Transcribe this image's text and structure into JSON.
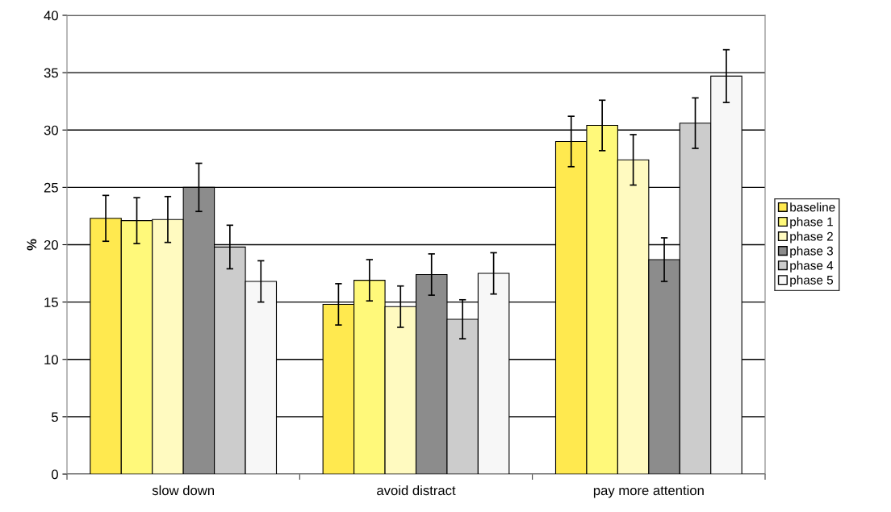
{
  "chart_data": {
    "type": "bar",
    "ylabel": "%",
    "categories": [
      "slow down",
      "avoid distract",
      "pay more attention"
    ],
    "series": [
      {
        "name": "baseline",
        "color": "#ffe94f",
        "values": [
          22.3,
          14.8,
          29.0
        ],
        "errors": [
          2.0,
          1.8,
          2.2
        ]
      },
      {
        "name": "phase 1",
        "color": "#fff97a",
        "values": [
          22.1,
          16.9,
          30.4
        ],
        "errors": [
          2.0,
          1.8,
          2.2
        ]
      },
      {
        "name": "phase 2",
        "color": "#fffac0",
        "values": [
          22.2,
          14.6,
          27.4
        ],
        "errors": [
          2.0,
          1.8,
          2.2
        ]
      },
      {
        "name": "phase 3",
        "color": "#8c8c8c",
        "values": [
          25.0,
          17.4,
          18.7
        ],
        "errors": [
          2.1,
          1.8,
          1.9
        ]
      },
      {
        "name": "phase 4",
        "color": "#cccccc",
        "values": [
          19.8,
          13.5,
          30.6
        ],
        "errors": [
          1.9,
          1.7,
          2.2
        ]
      },
      {
        "name": "phase 5",
        "color": "#f7f7f7",
        "values": [
          16.8,
          17.5,
          34.7
        ],
        "errors": [
          1.8,
          1.8,
          2.3
        ]
      }
    ],
    "ylim": [
      0,
      40
    ],
    "yticks": [
      0,
      5,
      10,
      15,
      20,
      25,
      30,
      35,
      40
    ],
    "grid": "y",
    "legend": "right"
  }
}
